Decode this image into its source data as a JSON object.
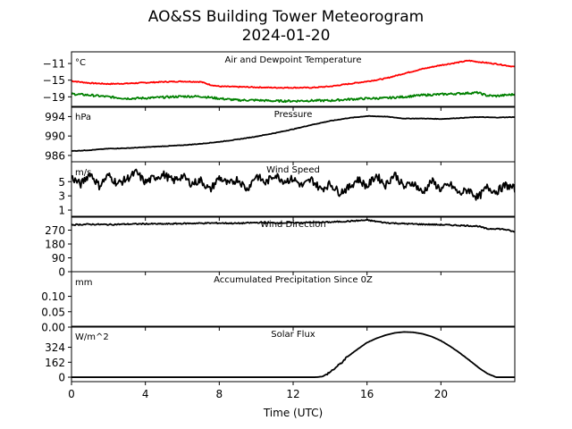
{
  "chart_data": {
    "type": "line",
    "title": "AO&SS Building Tower Meteorogram",
    "subtitle": "2024-01-20",
    "xlabel": "Time (UTC)",
    "x_ticks": [
      "0",
      "4",
      "8",
      "12",
      "16",
      "20"
    ],
    "xlim": [
      0,
      24
    ],
    "panels": [
      {
        "id": "temperature",
        "title": "Air and Dewpoint Temperature",
        "unit": "°C",
        "ylim": [
          -21.5,
          -8.2
        ],
        "y_ticks": [
          {
            "value": -11,
            "label": "−11"
          },
          {
            "value": -15,
            "label": "−15"
          },
          {
            "value": -19,
            "label": "−19"
          }
        ],
        "series": [
          {
            "color": "#ff0000",
            "x": [
              0,
              1,
              2,
              3,
              4,
              5,
              6,
              7,
              7.5,
              8,
              9,
              10,
              11,
              12,
              13,
              14,
              15,
              16,
              17,
              18,
              19,
              20,
              21,
              21.5,
              22,
              23,
              24
            ],
            "y": [
              -15.2,
              -15.7,
              -15.9,
              -15.8,
              -15.6,
              -15.4,
              -15.3,
              -15.4,
              -16.1,
              -16.5,
              -16.6,
              -16.7,
              -16.8,
              -16.8,
              -16.8,
              -16.5,
              -15.9,
              -15.3,
              -14.6,
              -13.4,
              -12.3,
              -11.4,
              -10.7,
              -10.3,
              -10.6,
              -11.1,
              -11.8
            ]
          },
          {
            "color": "#008000",
            "x": [
              0,
              1,
              2,
              3,
              4,
              5,
              6,
              7,
              8,
              9,
              10,
              11,
              12,
              13,
              14,
              15,
              16,
              17,
              18,
              19,
              20,
              21,
              22,
              22.5,
              23,
              24
            ],
            "y": [
              -18.3,
              -18.6,
              -19.0,
              -19.4,
              -19.3,
              -19.1,
              -18.9,
              -18.9,
              -19.4,
              -19.8,
              -19.8,
              -20.0,
              -20.0,
              -19.9,
              -19.9,
              -19.6,
              -19.4,
              -19.3,
              -19.0,
              -18.6,
              -18.4,
              -18.2,
              -18.0,
              -18.7,
              -18.8,
              -18.4
            ]
          }
        ]
      },
      {
        "id": "pressure",
        "title": "Pressure",
        "unit": "hPa",
        "ylim": [
          984.7,
          996.1
        ],
        "y_ticks": [
          {
            "value": 994,
            "label": "994"
          },
          {
            "value": 990,
            "label": "990"
          },
          {
            "value": 986,
            "label": "986"
          }
        ],
        "series": [
          {
            "color": "#000000",
            "x": [
              0,
              1,
              2,
              3,
              4,
              5,
              6,
              7,
              8,
              9,
              10,
              11,
              12,
              13,
              14,
              15,
              16,
              17,
              18,
              19,
              20,
              21,
              22,
              23,
              24
            ],
            "y": [
              986.9,
              987.1,
              987.4,
              987.5,
              987.7,
              987.9,
              988.1,
              988.4,
              988.8,
              989.3,
              989.9,
              990.6,
              991.4,
              992.3,
              993.1,
              993.7,
              994.1,
              994.0,
              993.6,
              993.6,
              993.5,
              993.7,
              993.9,
              993.8,
              993.9
            ]
          }
        ]
      },
      {
        "id": "wind_speed",
        "title": "Wind Speed",
        "unit": "m/s",
        "ylim": [
          0,
          7.8
        ],
        "y_ticks": [
          {
            "value": 5,
            "label": "5"
          },
          {
            "value": 3,
            "label": "3"
          },
          {
            "value": 1,
            "label": "1"
          }
        ],
        "series": [
          {
            "color": "#000000",
            "x": [
              0,
              0.5,
              1,
              1.5,
              2,
              2.5,
              3,
              3.5,
              4,
              4.5,
              5,
              5.5,
              6,
              6.5,
              7,
              7.5,
              8,
              8.5,
              9,
              9.5,
              10,
              10.5,
              11,
              11.5,
              12,
              12.5,
              13,
              13.5,
              14,
              14.5,
              15,
              15.5,
              16,
              16.5,
              17,
              17.5,
              18,
              18.5,
              19,
              19.5,
              20,
              20.5,
              21,
              21.5,
              22,
              22.5,
              23,
              23.5,
              24
            ],
            "y": [
              5.6,
              4.6,
              6.2,
              4.4,
              5.9,
              4.7,
              5.4,
              6.3,
              4.9,
              5.6,
              6.0,
              5.1,
              5.8,
              4.7,
              5.2,
              3.8,
              5.6,
              4.6,
              5.4,
              3.9,
              5.9,
              4.8,
              6.0,
              5.1,
              5.4,
              4.4,
              5.3,
              3.9,
              4.7,
              3.5,
              4.1,
              5.4,
              4.3,
              5.9,
              4.5,
              6.1,
              4.2,
              4.9,
              3.4,
              5.1,
              3.9,
              4.6,
              3.3,
              3.9,
              2.7,
              4.2,
              3.6,
              4.5,
              4.0
            ]
          }
        ]
      },
      {
        "id": "wind_direction",
        "title": "Wind Direction",
        "unit": "",
        "ylim": [
          0,
          360
        ],
        "y_ticks": [
          {
            "value": 270,
            "label": "270"
          },
          {
            "value": 180,
            "label": "180"
          },
          {
            "value": 90,
            "label": "90"
          },
          {
            "value": 0,
            "label": "0"
          }
        ],
        "series": [
          {
            "color": "#000000",
            "x": [
              0,
              1,
              2,
              3,
              4,
              5,
              6,
              7,
              8,
              9,
              10,
              11,
              12,
              13,
              14,
              15,
              16,
              17,
              18,
              19,
              20,
              21,
              22,
              22.5,
              23,
              23.5,
              24
            ],
            "y": [
              305,
              308,
              306,
              309,
              311,
              310,
              313,
              315,
              316,
              314,
              319,
              317,
              318,
              320,
              322,
              328,
              335,
              318,
              312,
              308,
              305,
              301,
              296,
              278,
              280,
              274,
              258
            ]
          }
        ]
      },
      {
        "id": "precipitation",
        "title": "Accumulated Precipitation Since 0Z",
        "unit": "mm",
        "ylim": [
          0,
          0.18
        ],
        "y_ticks": [
          {
            "value": 0.1,
            "label": "0.10"
          },
          {
            "value": 0.05,
            "label": "0.05"
          },
          {
            "value": 0,
            "label": "0.00"
          }
        ],
        "series": [
          {
            "color": "#000000",
            "x": [
              0,
              24
            ],
            "y": [
              0,
              0
            ]
          }
        ]
      },
      {
        "id": "solar_flux",
        "title": "Solar Flux",
        "unit": "W/m^2",
        "ylim": [
          -48,
          552
        ],
        "y_ticks": [
          {
            "value": 324,
            "label": "324"
          },
          {
            "value": 162,
            "label": "162"
          },
          {
            "value": 0,
            "label": "0"
          }
        ],
        "series": [
          {
            "color": "#000000",
            "x": [
              0,
              13.2,
              13.6,
              14,
              14.5,
              15,
              15.5,
              16,
              16.5,
              17,
              17.5,
              18,
              18.5,
              19,
              19.5,
              20,
              20.5,
              21,
              21.5,
              22,
              22.5,
              23,
              24
            ],
            "y": [
              0,
              0,
              8,
              55,
              135,
              230,
              305,
              375,
              420,
              455,
              480,
              490,
              486,
              470,
              440,
              395,
              335,
              265,
              190,
              110,
              40,
              0,
              0
            ]
          }
        ]
      }
    ]
  }
}
